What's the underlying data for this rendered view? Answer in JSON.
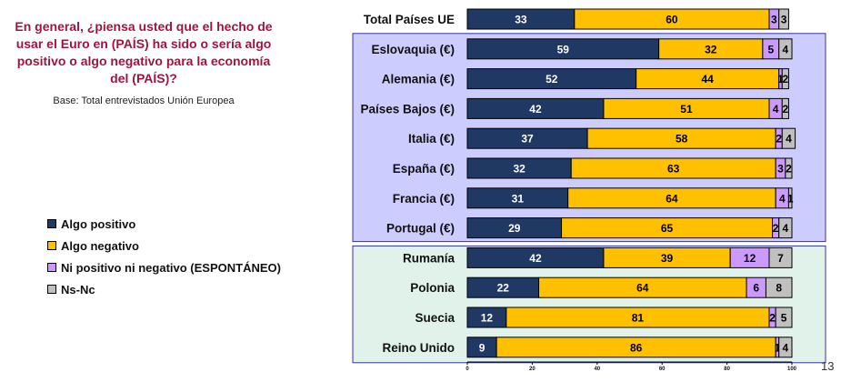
{
  "question": "En general, ¿piensa usted que el hecho de usar el Euro en (PAÍS) ha sido o sería algo positivo o algo negativo para la economía del (PAÍS)?",
  "base": "Base: Total entrevistados Unión Europea",
  "page_number": "13",
  "colors": {
    "positive": "#1f3864",
    "negative": "#ffc000",
    "neutral": "#cc99ff",
    "nsnc": "#c0c0c0",
    "group_euro_bg": "#ccccff",
    "group_noneuro_bg": "#e0f2ea",
    "group_border": "#3333aa"
  },
  "legend": [
    {
      "name": "Algo positivo",
      "color": "#1f3864"
    },
    {
      "name": "Algo negativo",
      "color": "#ffc000"
    },
    {
      "name": "Ni positivo ni negativo (ESPONTÁNEO)",
      "color": "#cc99ff"
    },
    {
      "name": "Ns-Nc",
      "color": "#c0c0c0"
    }
  ],
  "chart_data": {
    "type": "bar",
    "orientation": "horizontal",
    "stacked": true,
    "categories": [
      "Total Países UE",
      "Eslovaquia (€)",
      "Alemania (€)",
      "Países Bajos (€)",
      "Italia (€)",
      "España (€)",
      "Francia (€)",
      "Portugal (€)",
      "Rumanía",
      "Polonia",
      "Suecia",
      "Reino Unido"
    ],
    "series": [
      {
        "name": "Algo positivo",
        "values": [
          33,
          59,
          52,
          42,
          37,
          32,
          31,
          29,
          42,
          22,
          12,
          9
        ]
      },
      {
        "name": "Algo negativo",
        "values": [
          60,
          32,
          44,
          51,
          58,
          63,
          64,
          65,
          39,
          64,
          81,
          86
        ]
      },
      {
        "name": "Ni positivo ni negativo (ESPONTÁNEO)",
        "values": [
          3,
          5,
          1,
          4,
          2,
          3,
          4,
          2,
          12,
          6,
          2,
          1
        ]
      },
      {
        "name": "Ns-Nc",
        "values": [
          3,
          4,
          2,
          2,
          4,
          2,
          1,
          4,
          7,
          8,
          5,
          4
        ]
      }
    ],
    "xlim": [
      0,
      100
    ],
    "xticks": [
      0,
      20,
      40,
      60,
      80,
      100
    ],
    "groups": [
      {
        "name": "euro",
        "categories": [
          "Eslovaquia (€)",
          "Alemania (€)",
          "Países Bajos (€)",
          "Italia (€)",
          "España (€)",
          "Francia (€)",
          "Portugal (€)"
        ]
      },
      {
        "name": "non-euro",
        "categories": [
          "Rumanía",
          "Polonia",
          "Suecia",
          "Reino Unido"
        ]
      }
    ]
  }
}
